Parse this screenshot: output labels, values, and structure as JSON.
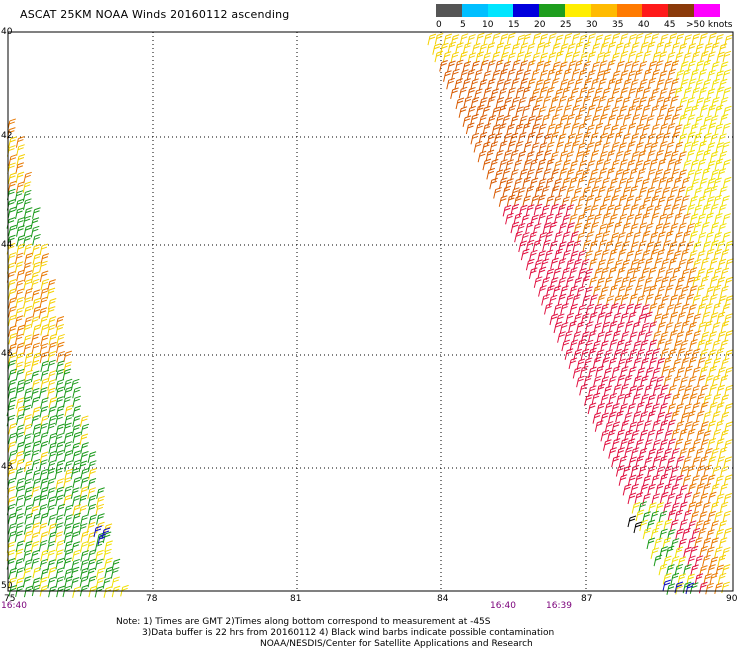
{
  "title": "ASCAT 25KM NOAA Winds 20160112 ascending",
  "legend": {
    "labels": [
      "0",
      "5",
      "10",
      "15",
      "20",
      "25",
      "30",
      "35",
      "40",
      "45",
      ">50 knots"
    ],
    "colors": [
      "#555555",
      "#00bfff",
      "#00e5ff",
      "#0000dd",
      "#1e9e1e",
      "#ffee00",
      "#ffbb00",
      "#ff7a00",
      "#ff1a1a",
      "#8b3a0a",
      "#ff00ff",
      "#6a0080"
    ]
  },
  "map": {
    "lat_labels": [
      "40",
      "42",
      "44",
      "46",
      "48",
      "50"
    ],
    "lon_labels": [
      "75",
      "78",
      "81",
      "84",
      "87",
      "90"
    ]
  },
  "times": {
    "left": "16:40",
    "mid1": "16:40",
    "mid2": "16:39"
  },
  "notes": {
    "line1": "Note: 1) Times are GMT 2)Times along bottom correspond to measurement at -45S",
    "line2": "3)Data buffer is 22 hrs from 20160112 4) Black wind barbs indicate possible contamination",
    "line3": "NOAA/NESDIS/Center for Satellite Applications and Research"
  },
  "swath_colors": {
    "yellow": "#f5d000",
    "lightyellow": "#f0e000",
    "orange": "#e87800",
    "darkorange": "#d85a00",
    "red": "#e01040",
    "green": "#1a9a1a",
    "blue": "#1010c0",
    "black": "#000000"
  }
}
